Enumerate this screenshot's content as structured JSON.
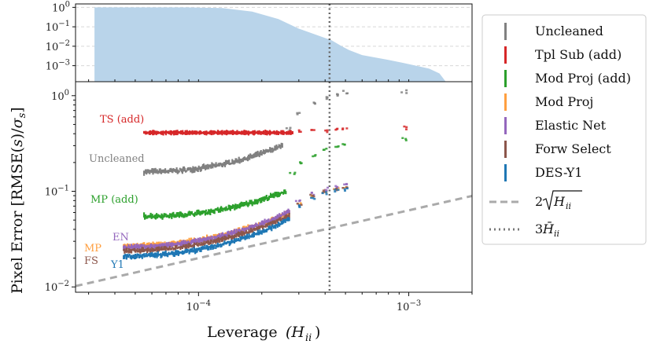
{
  "chart_data": [
    {
      "id": "top",
      "type": "area",
      "yscale": "log",
      "xscale": "log",
      "ylim": [
        0.00015,
        1.5
      ],
      "xlim": [
        2.6e-05,
        0.002
      ],
      "ytick_labels": [
        "10^0",
        "10^-1",
        "10^-2",
        "10^-3"
      ],
      "yticks": [
        1,
        0.1,
        0.01,
        0.001
      ],
      "fill_color": "#b9d4ea",
      "x": [
        3.2e-05,
        9e-05,
        0.00013,
        0.00018,
        0.00024,
        0.0003,
        0.00036,
        0.00043,
        0.00048,
        0.00052,
        0.0006,
        0.0008,
        0.001,
        0.00125,
        0.0014,
        0.0015
      ],
      "y": [
        1.0,
        1.0,
        0.92,
        0.6,
        0.25,
        0.08,
        0.04,
        0.02,
        0.01,
        0.0063,
        0.0035,
        0.002,
        0.0012,
        0.0007,
        0.0004,
        0.00015
      ],
      "vline_x": 0.00042
    },
    {
      "id": "main",
      "type": "scatter",
      "xscale": "log",
      "yscale": "log",
      "xlim": [
        2.6e-05,
        0.002
      ],
      "ylim": [
        0.0088,
        1.4
      ],
      "xlabel_main": "Leverage",
      "xlabel_math": "(H",
      "xlabel_sub": "ii",
      "xlabel_close": ")",
      "ylabel_main": "Pixel Error [RMSE(",
      "ylabel_math": "s",
      "ylabel_mid": ")/",
      "ylabel_sigma": "σ",
      "ylabel_sub": "s",
      "ylabel_close": "]",
      "xticks": [
        0.0001,
        0.001
      ],
      "xtick_labels": [
        "10^-4",
        "10^-3"
      ],
      "yticks": [
        1,
        0.1,
        0.01
      ],
      "ytick_labels": [
        "10^0",
        "10^-1",
        "10^-2"
      ],
      "vline_x": 0.00042,
      "series": [
        {
          "name": "Uncleaned",
          "short": "Uncleaned",
          "color": "#808080",
          "x0": 5.5e-05,
          "y0": 0.16,
          "x1": 0.00025,
          "y1": 0.3,
          "band": 0.03,
          "tail": [
            [
              0.00027,
              0.45
            ],
            [
              0.0003,
              0.65
            ],
            [
              0.00035,
              0.85
            ],
            [
              0.0004,
              0.95
            ],
            [
              0.00045,
              1.0
            ],
            [
              0.0005,
              1.08
            ],
            [
              0.00095,
              1.1
            ]
          ]
        },
        {
          "name": "Tpl Sub (add)",
          "short": "TS (add)",
          "color": "#d62728",
          "x0": 5.5e-05,
          "y0": 0.41,
          "x1": 0.00028,
          "y1": 0.41,
          "band": 0.008,
          "tail": [
            [
              0.0003,
              0.42
            ],
            [
              0.00035,
              0.42
            ],
            [
              0.0004,
              0.425
            ],
            [
              0.00045,
              0.44
            ],
            [
              0.0005,
              0.45
            ],
            [
              0.00095,
              0.46
            ]
          ]
        },
        {
          "name": "Mod Proj (add)",
          "short": "MP (add)",
          "color": "#2ca02c",
          "x0": 5.5e-05,
          "y0": 0.055,
          "x1": 0.00026,
          "y1": 0.1,
          "band": 0.03,
          "tail": [
            [
              0.00028,
              0.15
            ],
            [
              0.0003,
              0.2
            ],
            [
              0.00035,
              0.24
            ],
            [
              0.0004,
              0.27
            ],
            [
              0.00045,
              0.29
            ],
            [
              0.0005,
              0.31
            ],
            [
              0.00095,
              0.35
            ]
          ]
        },
        {
          "name": "Mod Proj",
          "short": "MP",
          "color": "#ff9f40",
          "x0": 4.4e-05,
          "y0": 0.027,
          "x1": 0.00027,
          "y1": 0.06,
          "band": 0.022,
          "tail": [
            [
              0.0003,
              0.075
            ],
            [
              0.00035,
              0.09
            ],
            [
              0.0004,
              0.1
            ],
            [
              0.00045,
              0.105
            ],
            [
              0.0005,
              0.11
            ]
          ]
        },
        {
          "name": "Elastic Net",
          "short": "EN",
          "color": "#9467bd",
          "x0": 4.4e-05,
          "y0": 0.026,
          "x1": 0.00027,
          "y1": 0.061,
          "band": 0.025,
          "tail": [
            [
              0.0003,
              0.078
            ],
            [
              0.00035,
              0.095
            ],
            [
              0.0004,
              0.105
            ],
            [
              0.00045,
              0.11
            ],
            [
              0.0005,
              0.115
            ]
          ]
        },
        {
          "name": "Forw Select",
          "short": "FS",
          "color": "#8c564b",
          "x0": 4.4e-05,
          "y0": 0.024,
          "x1": 0.00027,
          "y1": 0.056,
          "band": 0.02,
          "tail": [
            [
              0.0003,
              0.072
            ],
            [
              0.00035,
              0.088
            ],
            [
              0.0004,
              0.1
            ],
            [
              0.00045,
              0.105
            ],
            [
              0.0005,
              0.11
            ]
          ]
        },
        {
          "name": "DES-Y1",
          "short": "Y1",
          "color": "#1f77b4",
          "x0": 4.4e-05,
          "y0": 0.021,
          "x1": 0.00027,
          "y1": 0.051,
          "band": 0.025,
          "tail": [
            [
              0.0003,
              0.07
            ],
            [
              0.00035,
              0.085
            ],
            [
              0.0004,
              0.095
            ],
            [
              0.00045,
              0.1
            ],
            [
              0.0005,
              0.105
            ]
          ]
        }
      ],
      "reference_lines": [
        {
          "name": "2√H_ii",
          "label_pre": "2",
          "label_rad": "H",
          "label_sub": "ii",
          "color": "#aaaaaa",
          "style": "dashed"
        },
        {
          "name": "3 H̄_ii",
          "label_pre": "3",
          "label_rad": "H̄",
          "label_sub": "ii",
          "color": "#777777",
          "style": "dotted"
        }
      ]
    }
  ]
}
